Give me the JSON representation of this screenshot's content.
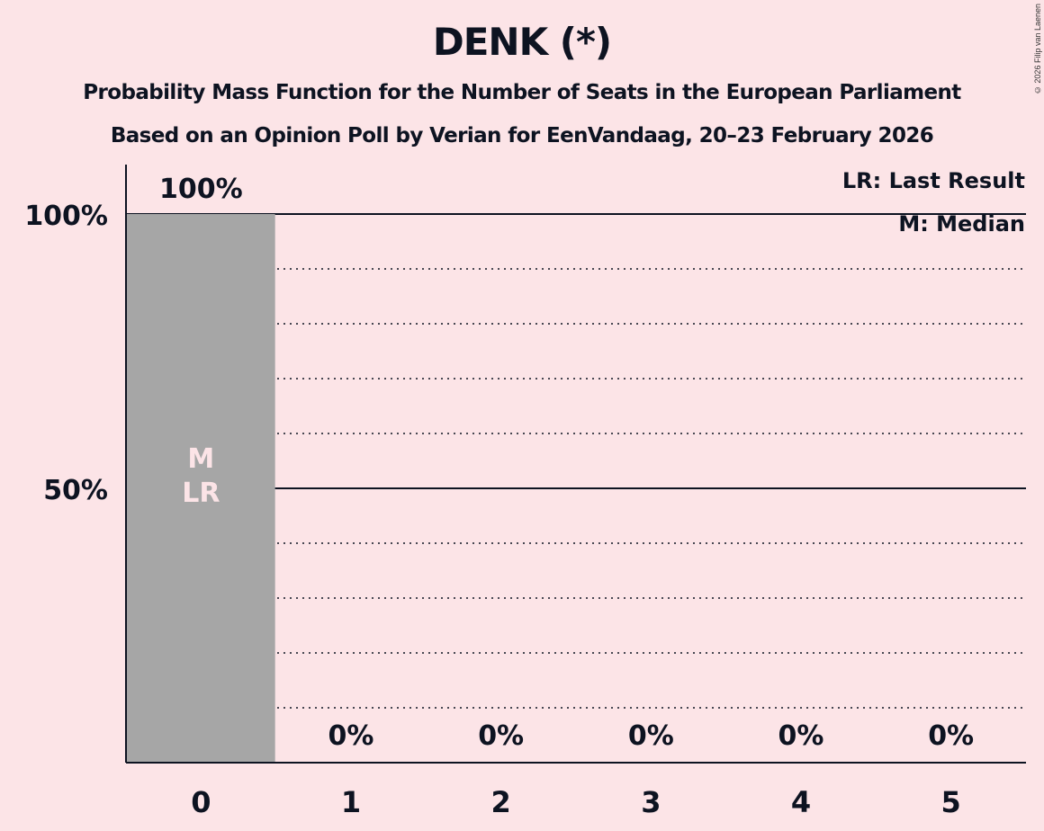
{
  "title": "DENK (*)",
  "subtitle1": "Probability Mass Function for the Number of Seats in the European Parliament",
  "subtitle2": "Based on an Opinion Poll by Verian for EenVandaag, 20–23 February 2026",
  "copyright": "© 2026 Filip van Laenen",
  "legend": {
    "lr": "LR: Last Result",
    "m": "M: Median"
  },
  "yticks": [
    "100%",
    "50%"
  ],
  "bar_markers": {
    "m": "M",
    "lr": "LR"
  },
  "colors": {
    "background": "#fce4e7",
    "bar": "#a6a6a6",
    "text": "#0d1321",
    "marker_text": "#fce4e7"
  },
  "chart_data": {
    "type": "bar",
    "title": "DENK (*)",
    "subtitle": "Probability Mass Function for the Number of Seats in the European Parliament — Based on an Opinion Poll by Verian for EenVandaag, 20–23 February 2026",
    "categories": [
      "0",
      "1",
      "2",
      "3",
      "4",
      "5"
    ],
    "values": [
      100,
      0,
      0,
      0,
      0,
      0
    ],
    "value_labels": [
      "100%",
      "0%",
      "0%",
      "0%",
      "0%",
      "0%"
    ],
    "xlabel": "",
    "ylabel": "",
    "ylim": [
      0,
      100
    ],
    "yticks": [
      50,
      100
    ],
    "grid": "dotted every 10%, solid at 50% and 100%",
    "median": 0,
    "last_result": 0,
    "legend": [
      "LR: Last Result",
      "M: Median"
    ],
    "legend_position": "top-right"
  }
}
